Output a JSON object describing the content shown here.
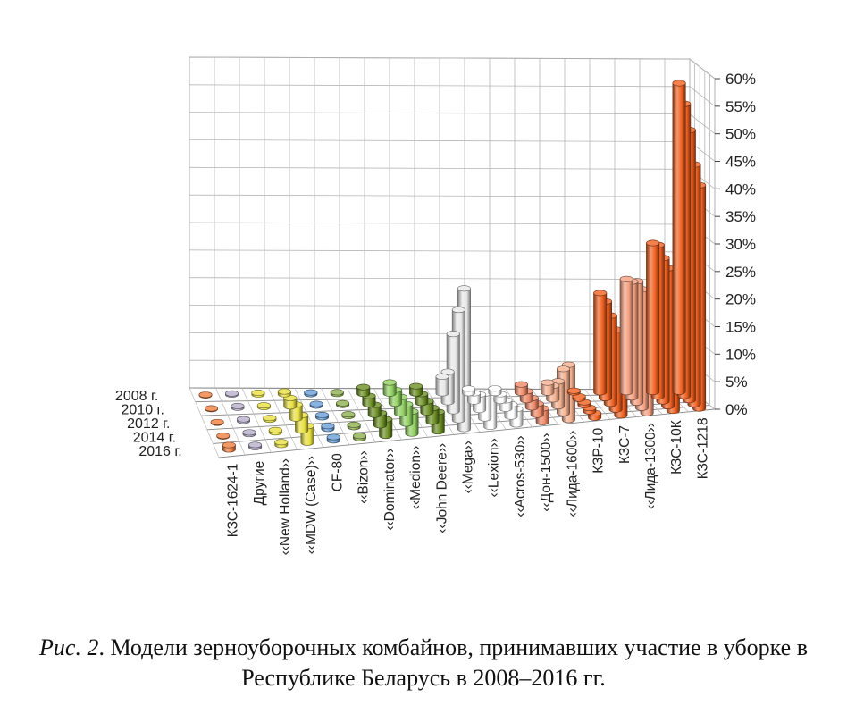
{
  "chart_data": {
    "type": "bar",
    "projection": "3d",
    "categories": [
      "КЗС-1624-1",
      "Другие",
      "«New Holland»",
      "«MDW (Case)»",
      "CF-80",
      "«Bizon»",
      "«Dominator»",
      "«Medion»",
      "«John Deere»",
      "«Mega»",
      "«Lexion»",
      "«Acros-530»",
      "«Дон-1500»",
      "«Лида-1600»",
      "КЗР-10",
      "КЗС-7",
      "«Лида-1300»",
      "КЗС-10К",
      "КЗС-1218"
    ],
    "category_labels": [
      "КЗС-1624-1",
      "Другие",
      "‹‹New Holland››",
      "‹‹MDW (Case)››",
      "CF-80",
      "‹‹Bizon››",
      "‹‹Dominator››",
      "‹‹Medion››",
      "‹‹John Deere››",
      "‹‹Mega››",
      "‹‹Lexion››",
      "‹‹Acros-530››",
      "‹‹Дон-1500››",
      "‹‹Лида-1600››",
      "КЗР-10",
      "КЗС-7",
      "‹‹Лида-1300››",
      "КЗС-10К",
      "КЗС-1218"
    ],
    "series": [
      {
        "name": "2008 г.",
        "values": [
          0,
          0.2,
          0.3,
          0.5,
          0.3,
          0.3,
          1.2,
          2.0,
          1.3,
          3.0,
          0.8,
          0.8,
          1.5,
          1.8,
          0.3,
          18.0,
          20.5,
          27.0,
          56.0
        ]
      },
      {
        "name": "2010 г.",
        "values": [
          0,
          0.3,
          0.3,
          1.5,
          0.3,
          0.3,
          1.5,
          2.5,
          1.6,
          5.5,
          1.5,
          1.2,
          1.6,
          2.5,
          0.4,
          17.5,
          21.0,
          27.5,
          53.0
        ]
      },
      {
        "name": "2012 г.",
        "values": [
          0,
          0.3,
          0.3,
          2.5,
          0.4,
          0.3,
          1.8,
          3.0,
          2.0,
          14.0,
          2.8,
          1.5,
          1.7,
          4.5,
          0.5,
          16.0,
          22.0,
          26.0,
          49.0
        ]
      },
      {
        "name": "2014 г.",
        "values": [
          0,
          0.3,
          0.4,
          2.8,
          0.5,
          0.4,
          2.2,
          3.5,
          2.5,
          20.0,
          4.5,
          2.2,
          2.0,
          8.0,
          0.6,
          14.5,
          21.5,
          25.0,
          43.5
        ]
      },
      {
        "name": "2016 г.",
        "values": [
          0.8,
          0.4,
          0.5,
          3.0,
          0.6,
          0.4,
          3.0,
          4.0,
          3.5,
          25.5,
          5.5,
          2.8,
          2.5,
          10.0,
          0.8,
          13.0,
          21.0,
          22.5,
          40.5
        ]
      }
    ],
    "category_colors": [
      "#f08040",
      "#b8b0cc",
      "#e8e040",
      "#e8e040",
      "#6aa0d8",
      "#90b050",
      "#6b8e23",
      "#90d060",
      "#6b8e23",
      "#e8e8e8",
      "#ffffff",
      "#ffffff",
      "#ee8866",
      "#f4b090",
      "#f06020",
      "#f06020",
      "#f4a080",
      "#f06020",
      "#f06020"
    ],
    "zlabels": [
      "0%",
      "5%",
      "10%",
      "15%",
      "20%",
      "25%",
      "30%",
      "35%",
      "40%",
      "45%",
      "50%",
      "55%",
      "60%"
    ],
    "zlim": [
      0,
      60
    ],
    "grid": true
  },
  "caption": {
    "num": "Рис. 2",
    "text": ". Модели зерноуборочных комбайнов, принимавших участие в уборке в Республике Беларусь в 2008–2016 гг."
  }
}
